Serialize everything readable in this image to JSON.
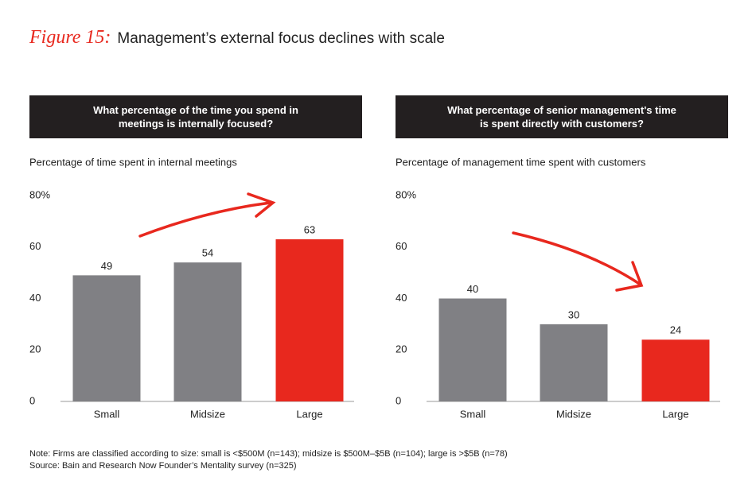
{
  "figure_label": "Figure 15:",
  "title": "Management’s external focus declines with scale",
  "chart_data": [
    {
      "type": "bar",
      "title": "What percentage of the time you spend in meetings is internally focused?",
      "y_label": "Percentage of time spent in internal meetings",
      "categories": [
        "Small",
        "Midsize",
        "Large"
      ],
      "values": [
        49,
        54,
        63
      ],
      "colors": [
        "#808084",
        "#808084",
        "#e8281e"
      ],
      "ylim": [
        0,
        80
      ],
      "yticks": [
        0,
        20,
        40,
        60,
        {
          "value": 80,
          "label": "80%"
        }
      ]
    },
    {
      "type": "bar",
      "title": "What percentage of senior management's time is spent directly with customers?",
      "y_label": "Percentage of management time spent with customers",
      "categories": [
        "Small",
        "Midsize",
        "Large"
      ],
      "values": [
        40,
        30,
        24
      ],
      "colors": [
        "#808084",
        "#808084",
        "#e8281e"
      ],
      "ylim": [
        0,
        80
      ],
      "yticks": [
        0,
        20,
        40,
        60,
        {
          "value": 80,
          "label": "80%"
        }
      ]
    }
  ],
  "notes": [
    "Note: Firms are classified according to size: small is <$500M (n=143); midsize is $500M–$5B (n=104); large is >$5B (n=78)",
    "Source: Bain and Research Now Founder’s Mentality survey (n=325)"
  ]
}
